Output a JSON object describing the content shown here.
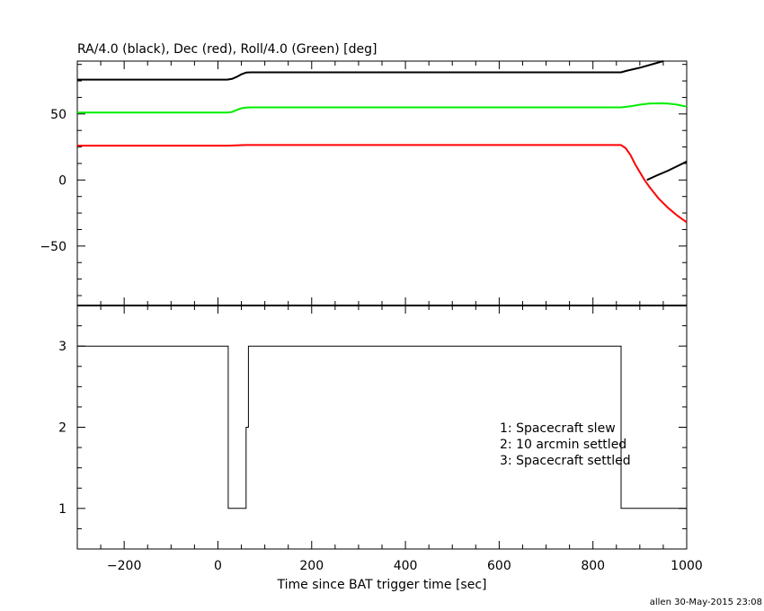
{
  "chart_data": [
    {
      "type": "line",
      "title": "RA/4.0 (black), Dec (red), Roll/4.0 (Green) [deg]",
      "xlim": [
        -300,
        1000
      ],
      "ylim": [
        -95,
        90
      ],
      "yticks": [
        -50,
        0,
        50
      ],
      "ytick_labels": [
        "−50",
        "0",
        "50"
      ],
      "series": [
        {
          "color": "#000000",
          "segments": [
            {
              "x": [
                -300,
                20,
                30,
                40,
                50,
                60,
                70,
                350,
                860,
                870,
                900,
                940,
                950
              ],
              "y": [
                76,
                76,
                76.5,
                78,
                80,
                81.3,
                81.5,
                81.5,
                81.5,
                82.5,
                85,
                89,
                90
              ]
            },
            {
              "x": [
                915,
                940,
                960,
                980,
                1000
              ],
              "y": [
                0,
                4,
                7,
                10.5,
                14
              ]
            }
          ]
        },
        {
          "color": "#00ee00",
          "segments": [
            {
              "x": [
                -300,
                20,
                30,
                40,
                50,
                60,
                70,
                350,
                860,
                880,
                900,
                920,
                940,
                960,
                980,
                1000
              ],
              "y": [
                51,
                51,
                51.5,
                53,
                54.3,
                54.8,
                55,
                55,
                55,
                55.8,
                57,
                57.8,
                58,
                57.8,
                57,
                55.5
              ]
            }
          ]
        },
        {
          "color": "#ff0000",
          "segments": [
            {
              "x": [
                -300,
                20,
                40,
                60,
                350,
                860,
                870,
                880,
                890,
                900,
                910,
                920,
                940,
                960,
                980,
                1000
              ],
              "y": [
                26,
                26,
                26.2,
                26.5,
                26.5,
                26.5,
                24,
                19,
                12,
                6,
                0,
                -5,
                -14,
                -21,
                -27,
                -32
              ]
            }
          ]
        }
      ]
    },
    {
      "type": "line",
      "step": true,
      "xlim": [
        -300,
        1000
      ],
      "ylim": [
        0.5,
        3.5
      ],
      "yticks": [
        1,
        2,
        3
      ],
      "ytick_labels": [
        "1",
        "2",
        "3"
      ],
      "xticks": [
        -200,
        0,
        200,
        400,
        600,
        800,
        1000
      ],
      "xtick_labels": [
        "−200",
        "0",
        "200",
        "400",
        "600",
        "800",
        "1000"
      ],
      "xlabel": "Time since BAT trigger time [sec]",
      "series": [
        {
          "color": "#000000",
          "x": [
            -300,
            22,
            22,
            60,
            60,
            65,
            65,
            860,
            860,
            1000
          ],
          "y": [
            3,
            3,
            1,
            1,
            2,
            2,
            3,
            3,
            1,
            1
          ]
        }
      ],
      "annotations": [
        "1: Spacecraft slew",
        "2: 10 arcmin settled",
        "3: Spacecraft settled"
      ]
    }
  ],
  "footer": "allen 30-May-2015 23:08"
}
